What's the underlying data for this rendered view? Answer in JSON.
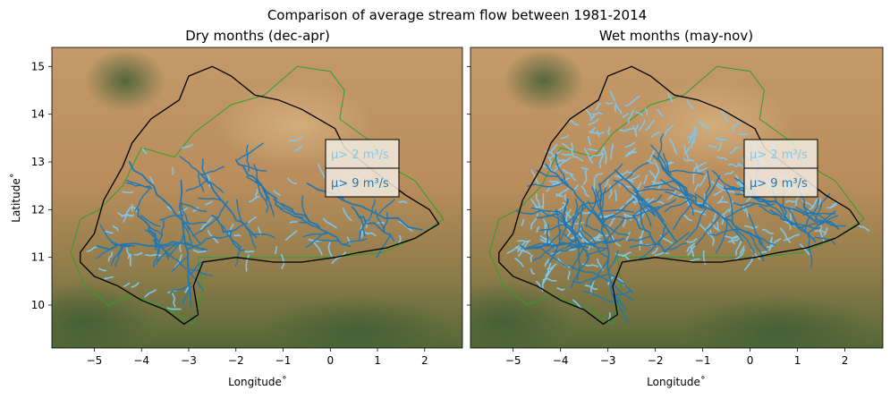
{
  "figure": {
    "title": "Comparison of average stream flow between 1981-2014"
  },
  "colors": {
    "flow_low": "#7ec8ef",
    "flow_high": "#1f78b4",
    "basin_outline": "#000000",
    "country_border": "#2ca02c"
  },
  "chart_data": [
    {
      "type": "map",
      "title": "Dry months (dec-apr)",
      "xlabel": "Longitude˚",
      "ylabel": "Latitude˚",
      "xlim": [
        -5.9,
        2.8
      ],
      "ylim": [
        9.1,
        15.4
      ],
      "xticks": [
        "−5",
        "−4",
        "−3",
        "−2",
        "−1",
        "0",
        "1",
        "2"
      ],
      "yticks": [
        "10",
        "11",
        "12",
        "13",
        "14",
        "15"
      ],
      "legend": {
        "placement": "right-center",
        "entries": [
          "μ> 2 m³/s",
          "μ> 9 m³/s"
        ]
      },
      "density": 0.35
    },
    {
      "type": "map",
      "title": "Wet months (may-nov)",
      "xlabel": "Longitude˚",
      "xlim": [
        -5.9,
        2.8
      ],
      "ylim": [
        9.1,
        15.4
      ],
      "xticks": [
        "−5",
        "−4",
        "−3",
        "−2",
        "−1",
        "0",
        "1",
        "2"
      ],
      "legend": {
        "placement": "right-center",
        "entries": [
          "μ> 2 m³/s",
          "μ> 9 m³/s"
        ]
      },
      "density": 1.0
    }
  ]
}
